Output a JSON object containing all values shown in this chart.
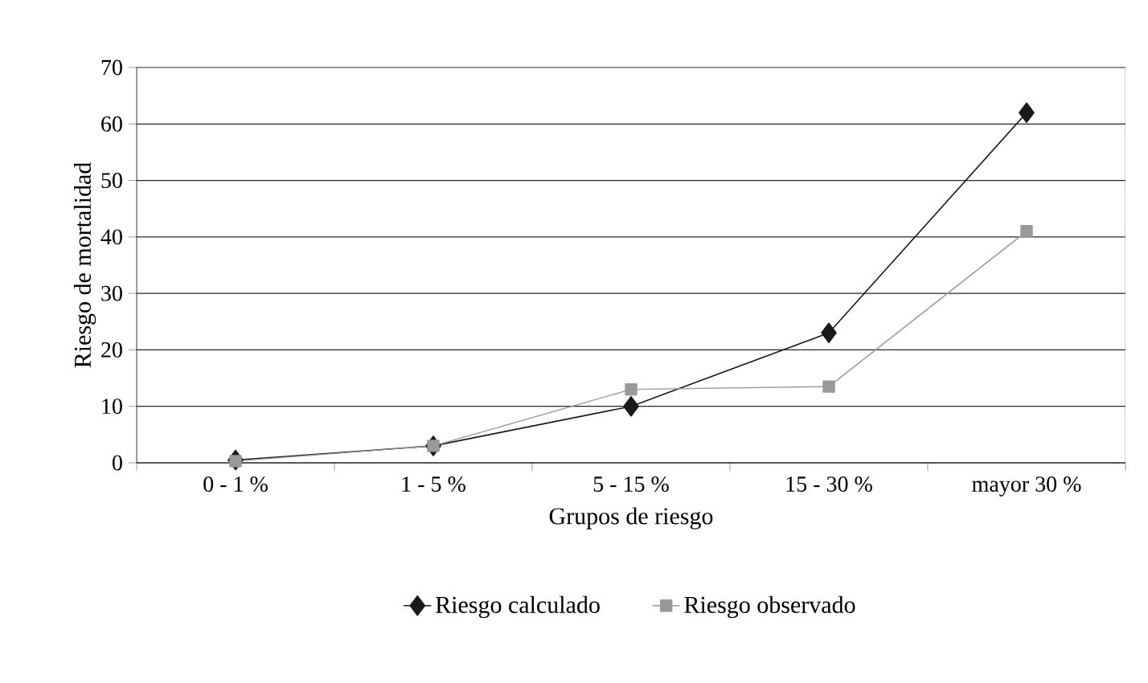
{
  "chart_data": {
    "type": "line",
    "xlabel": "Grupos de riesgo",
    "ylabel": "Riesgo de mortalidad",
    "categories": [
      "0 - 1 %",
      "1 - 5 %",
      "5 - 15 %",
      "15 - 30 %",
      "mayor 30 %"
    ],
    "series": [
      {
        "name": "Riesgo calculado",
        "color": "#1a1a1a",
        "marker": "diamond",
        "values": [
          0.5,
          3,
          10,
          23,
          62
        ]
      },
      {
        "name": "Riesgo observado",
        "color": "#999999",
        "marker": "square",
        "values": [
          0.3,
          3,
          13,
          13.5,
          41
        ]
      }
    ],
    "ylim": [
      0,
      70
    ],
    "yticks": [
      0,
      10,
      20,
      30,
      40,
      50,
      60,
      70
    ],
    "grid": "y",
    "legend": "bottom"
  }
}
